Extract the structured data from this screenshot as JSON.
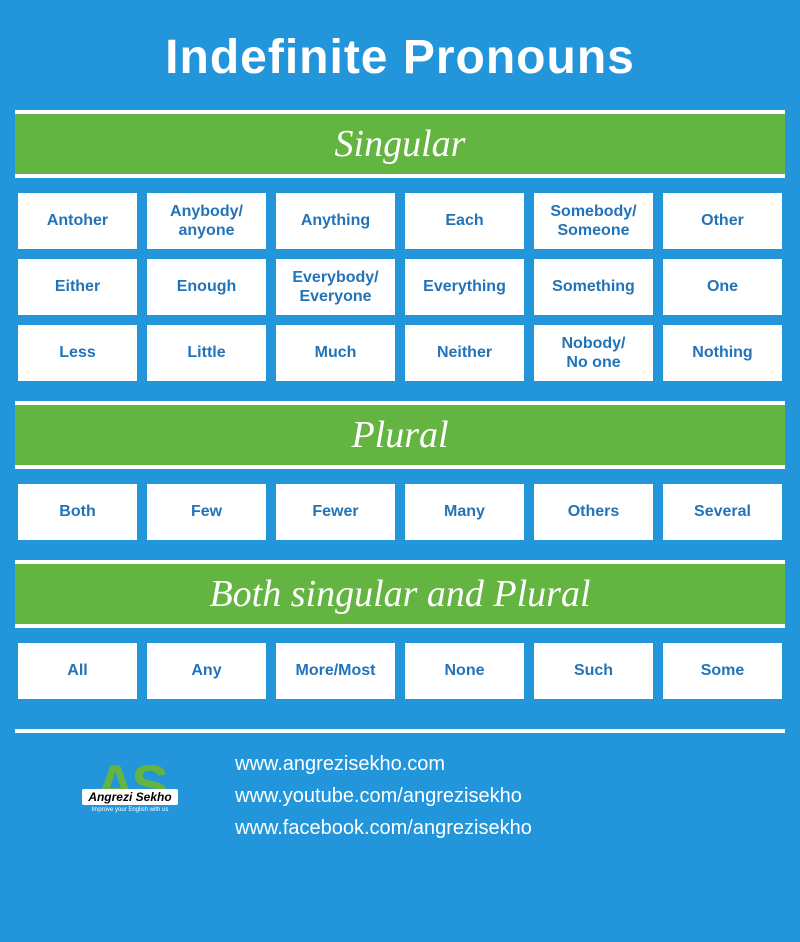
{
  "title": "Indefinite Pronouns",
  "sections": [
    {
      "header": "Singular",
      "items": [
        "Antoher",
        "Anybody/\nanyone",
        "Anything",
        "Each",
        "Somebody/\nSomeone",
        "Other",
        "Either",
        "Enough",
        "Everybody/\nEveryone",
        "Everything",
        "Something",
        "One",
        "Less",
        "Little",
        "Much",
        "Neither",
        "Nobody/\nNo one",
        "Nothing"
      ]
    },
    {
      "header": "Plural",
      "items": [
        "Both",
        "Few",
        "Fewer",
        "Many",
        "Others",
        "Several"
      ]
    },
    {
      "header": "Both singular and Plural",
      "items": [
        "All",
        "Any",
        "More/Most",
        "None",
        "Such",
        "Some"
      ]
    }
  ],
  "footer": {
    "logo_initials": "AS",
    "logo_label": "Angrezi Sekho",
    "logo_sub": "Improve your English with us",
    "links": [
      "www.angrezisekho.com",
      "www.youtube.com/angrezisekho",
      "www.facebook.com/angrezisekho"
    ]
  },
  "colors": {
    "background": "#2396db",
    "section_bg": "#63b440",
    "cell_bg": "#ffffff",
    "cell_text": "#2273b8",
    "title_text": "#ffffff"
  }
}
